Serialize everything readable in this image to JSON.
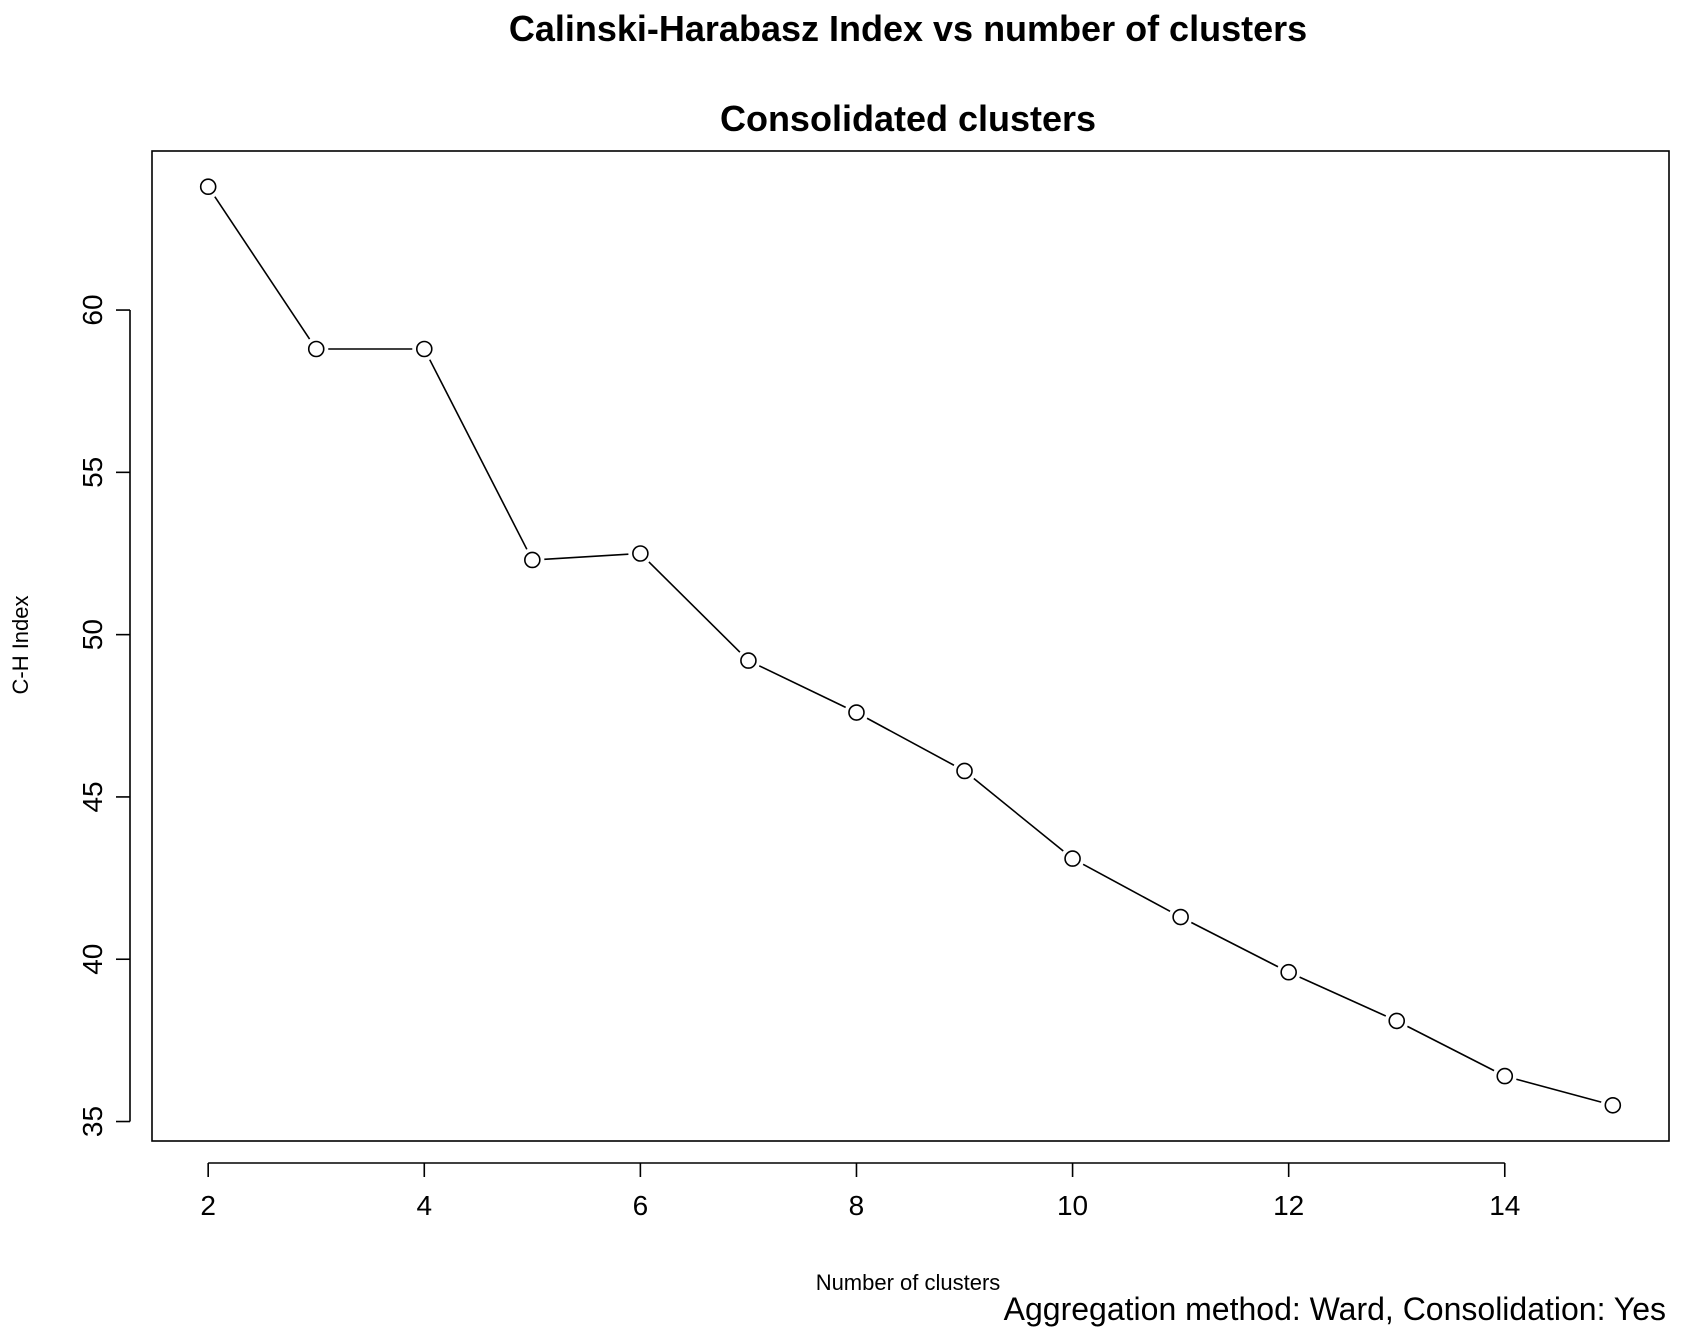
{
  "chart_data": {
    "type": "line",
    "title": "Calinski-Harabasz Index vs number of clusters",
    "subtitle": "Consolidated clusters",
    "xlabel": "Number of clusters",
    "ylabel": "C-H Index",
    "caption": "Aggregation method: Ward, Consolidation: Yes",
    "x": [
      2,
      3,
      4,
      5,
      6,
      7,
      8,
      9,
      10,
      11,
      12,
      13,
      14,
      15
    ],
    "series": [
      {
        "values": [
          63.8,
          58.8,
          58.8,
          52.3,
          52.5,
          49.2,
          47.6,
          45.8,
          43.1,
          41.3,
          39.6,
          38.1,
          36.4,
          35.5
        ]
      }
    ],
    "xlim": [
      1.48,
      15.52
    ],
    "ylim": [
      34.4,
      64.9
    ],
    "xticks": [
      2,
      4,
      6,
      8,
      10,
      12,
      14
    ],
    "xtick_labels": [
      "2",
      "4",
      "6",
      "8",
      "10",
      "12",
      "14"
    ],
    "yticks": [
      35,
      40,
      45,
      50,
      55,
      60
    ],
    "ytick_labels": [
      "35",
      "40",
      "45",
      "50",
      "55",
      "60"
    ],
    "marker": "open-circle",
    "line_color": "#000000",
    "grid": false,
    "legend": "none"
  }
}
